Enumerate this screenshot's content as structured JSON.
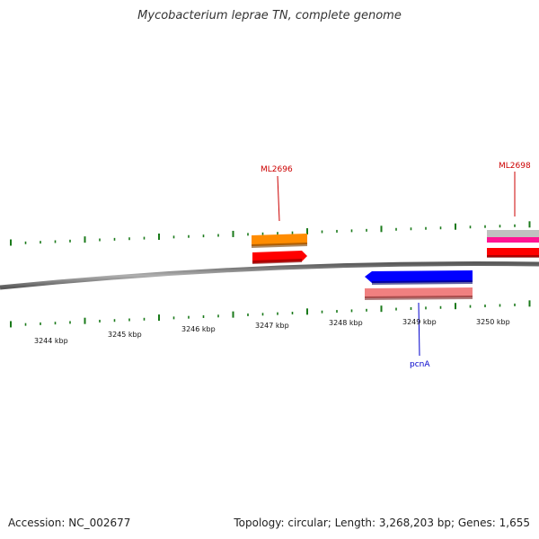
{
  "title": "Mycobacterium leprae TN, complete genome",
  "footer": {
    "accession": "Accession: NC_002677",
    "topology": "Topology: circular; Length: 3,268,203 bp; Genes: 1,655"
  },
  "ticks": [
    {
      "label": "3244 kbp"
    },
    {
      "label": "3245 kbp"
    },
    {
      "label": "3246 kbp"
    },
    {
      "label": "3247 kbp"
    },
    {
      "label": "3248 kbp"
    },
    {
      "label": "3249 kbp"
    },
    {
      "label": "3250 kbp"
    }
  ],
  "gene_labels": [
    {
      "text": "ML2696",
      "color": "#cc0000"
    },
    {
      "text": "ML2698",
      "color": "#cc0000"
    },
    {
      "text": "pcnA",
      "color": "#0000cc"
    }
  ],
  "colors": {
    "backbone": "#808080",
    "tick": "#1a7a1a",
    "orange_feature": "#ff8c00",
    "red_feature": "#ff0000",
    "blue_feature": "#0000ff",
    "pink_feature": "#f08080",
    "magenta_feature": "#ff1493",
    "grey_feature": "#c0c0c0"
  }
}
